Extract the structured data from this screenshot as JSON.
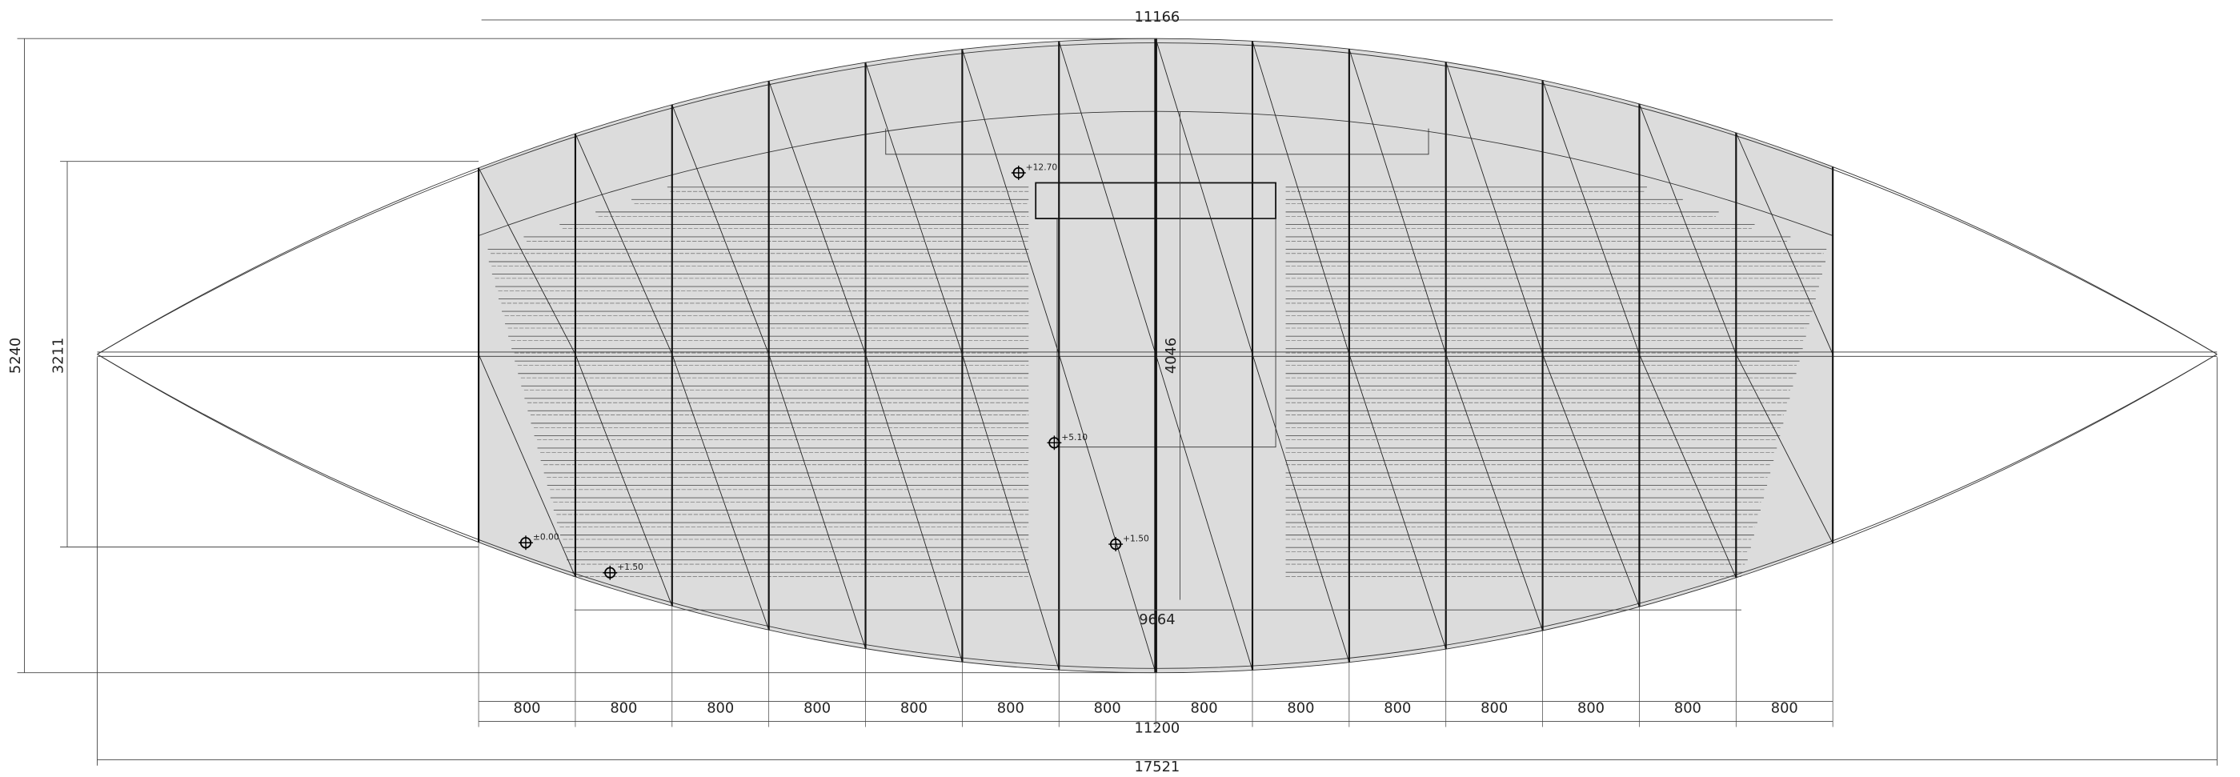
{
  "dimensions": {
    "overall_width": "11166",
    "overall_height": "5240",
    "inner_height": "3211",
    "center_height": "4046",
    "seating_width": "9664",
    "bay_total": "11200",
    "span": "17521"
  },
  "bays": [
    "800",
    "800",
    "800",
    "800",
    "800",
    "800",
    "800",
    "800",
    "800",
    "800",
    "800",
    "800",
    "800",
    "800"
  ],
  "levels": [
    "+12.70",
    "+5.10",
    "+1.50",
    "±0.00",
    "+1.50"
  ]
}
